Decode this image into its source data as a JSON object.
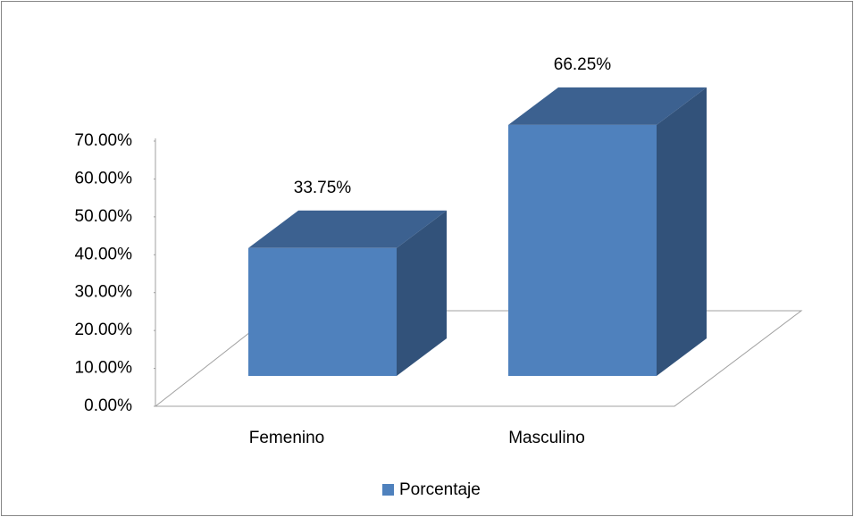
{
  "chart_data": {
    "type": "bar3d",
    "categories": [
      "Femenino",
      "Masculino"
    ],
    "series": [
      {
        "name": "Porcentaje",
        "color": "#4f81bd",
        "values": [
          33.75,
          66.25
        ],
        "value_labels": [
          "33.75%",
          "66.25%"
        ]
      }
    ],
    "ylim": [
      0,
      70
    ],
    "yticks": [
      {
        "value": 0,
        "label": "0.00%"
      },
      {
        "value": 10,
        "label": "10.00%"
      },
      {
        "value": 20,
        "label": "20.00%"
      },
      {
        "value": 30,
        "label": "30.00%"
      },
      {
        "value": 40,
        "label": "40.00%"
      },
      {
        "value": 50,
        "label": "50.00%"
      },
      {
        "value": 60,
        "label": "60.00%"
      },
      {
        "value": 70,
        "label": "70.00%"
      }
    ],
    "legend": "bottom"
  }
}
